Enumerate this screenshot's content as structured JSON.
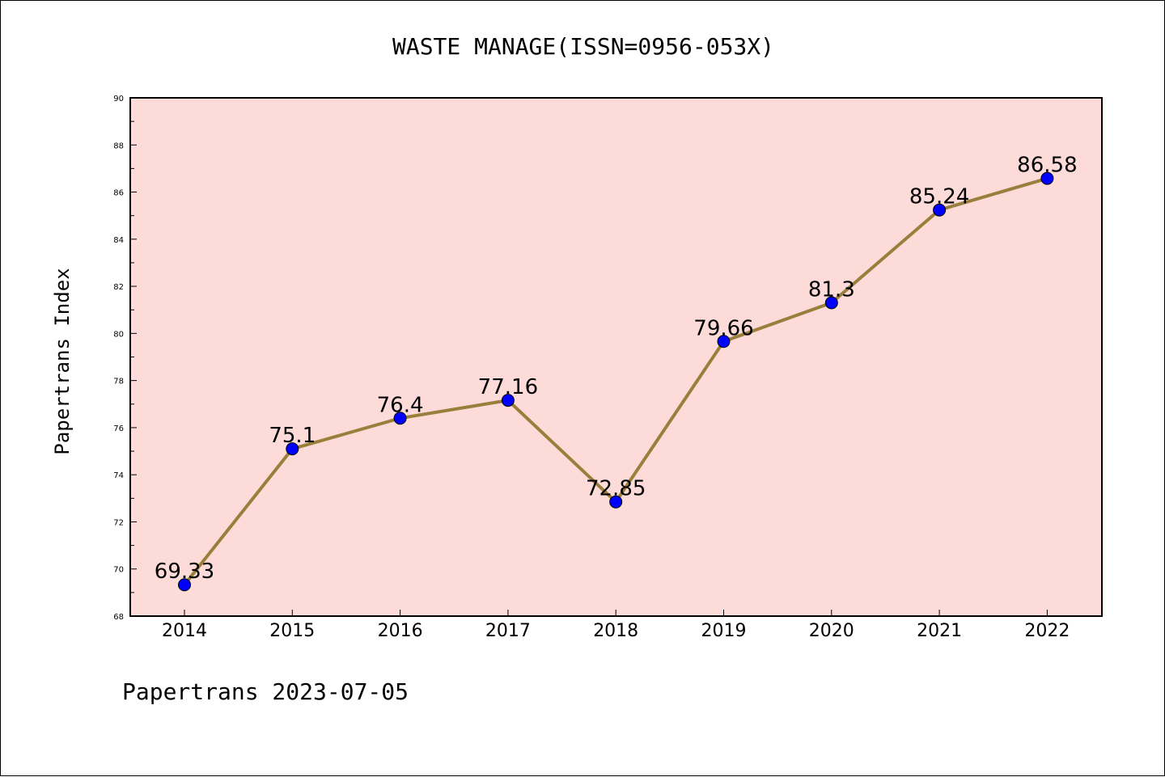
{
  "chart_data": {
    "type": "line",
    "title": "WASTE MANAGE(ISSN=0956-053X)",
    "xlabel": "",
    "ylabel": "Papertrans Index",
    "categories": [
      "2014",
      "2015",
      "2016",
      "2017",
      "2018",
      "2019",
      "2020",
      "2021",
      "2022"
    ],
    "series": [
      {
        "values": [
          69.33,
          75.1,
          76.4,
          77.16,
          72.85,
          79.66,
          81.3,
          85.24,
          86.58
        ],
        "labels": [
          "69.33",
          "75.1",
          "76.4",
          "77.16",
          "72.85",
          "79.66",
          "81.3",
          "85.24",
          "86.58"
        ],
        "line_color": "#9a7e3c",
        "marker_color": "#0000ff"
      }
    ],
    "ylim": [
      68,
      90
    ],
    "yticks": [
      "68",
      "70",
      "72",
      "74",
      "76",
      "78",
      "80",
      "82",
      "84",
      "86",
      "88",
      "90"
    ],
    "plot_background": "#fddbd9",
    "grid": false,
    "footer": "Papertrans 2023-07-05"
  }
}
